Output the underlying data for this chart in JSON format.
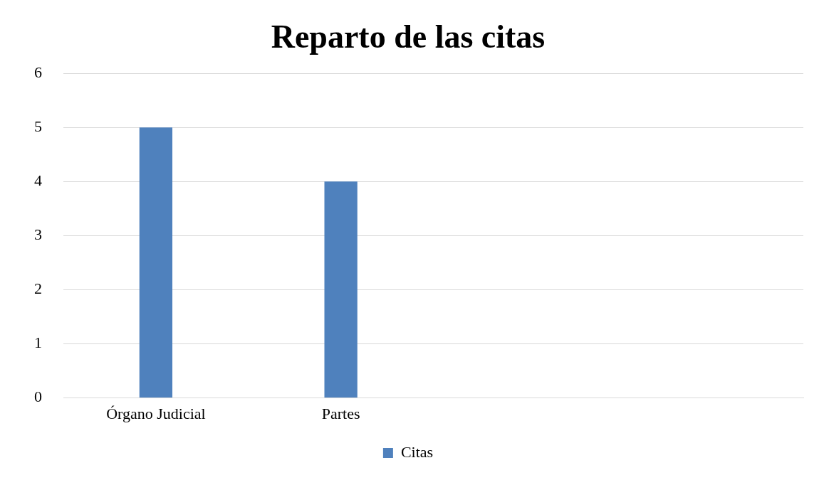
{
  "chart_data": {
    "type": "bar",
    "title": "Reparto de las citas",
    "categories": [
      "Órgano Judicial",
      "Partes",
      null,
      null
    ],
    "series": [
      {
        "name": "Citas",
        "color": "#4f81bd",
        "values": [
          5,
          4,
          null,
          null
        ]
      }
    ],
    "ylim": [
      0,
      6
    ],
    "yticks": [
      0,
      1,
      2,
      3,
      4,
      5,
      6
    ],
    "grid": "y",
    "legend": "bottom"
  }
}
